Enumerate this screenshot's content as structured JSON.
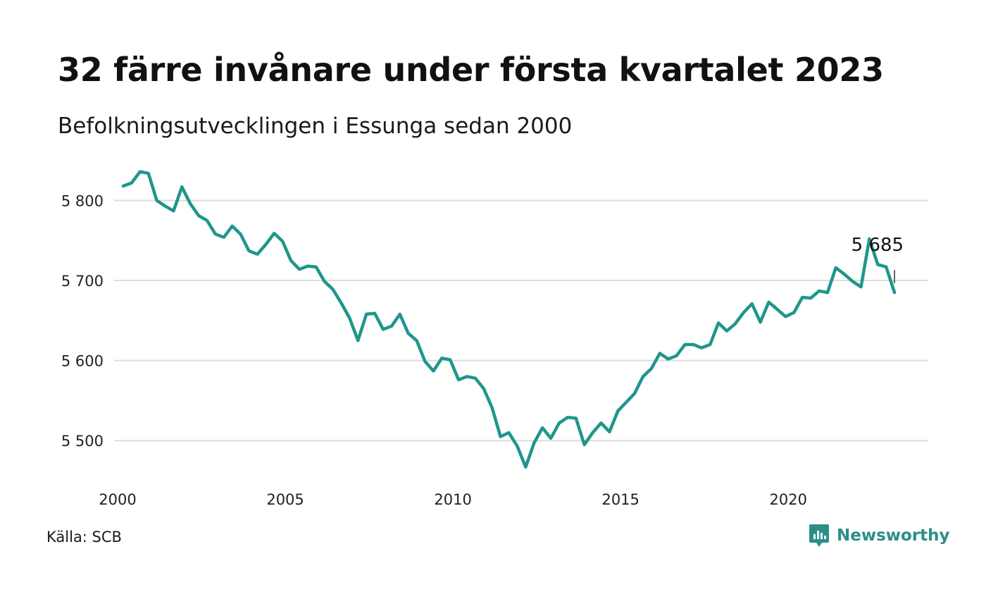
{
  "header": {
    "title": "32 färre invånare under första kvartalet 2023",
    "subtitle": "Befolkningsutvecklingen i Essunga sedan 2000"
  },
  "footer": {
    "source": "Källa: SCB",
    "brand": "Newsworthy",
    "brand_icon": "newsworthy-logo-icon"
  },
  "colors": {
    "line": "#1f968b",
    "grid": "#dddddd",
    "brand": "#2b8f87"
  },
  "chart_data": {
    "type": "line",
    "title": "32 färre invånare under första kvartalet 2023",
    "subtitle": "Befolkningsutvecklingen i Essunga sedan 2000",
    "xlabel": "",
    "ylabel": "",
    "x_ticks": [
      "2000",
      "2005",
      "2010",
      "2015",
      "2020"
    ],
    "y_ticks": [
      {
        "value": 5500,
        "label": "5 500"
      },
      {
        "value": 5600,
        "label": "5 600"
      },
      {
        "value": 5700,
        "label": "5 700"
      },
      {
        "value": 5800,
        "label": "5 800"
      }
    ],
    "xlim": [
      2000,
      2023.25
    ],
    "ylim": [
      5450,
      5855
    ],
    "grid": true,
    "legend": "none",
    "annotation": {
      "label": "5 685",
      "x": 2023.0,
      "y": 5685
    },
    "series": [
      {
        "x": [
          2000.0,
          2000.25,
          2000.5,
          2000.75,
          2001.0,
          2001.25,
          2001.5,
          2001.75,
          2002.0,
          2002.25,
          2002.5,
          2002.75,
          2003.0,
          2003.25,
          2003.5,
          2003.75,
          2004.0,
          2004.25,
          2004.5,
          2004.75,
          2005.0,
          2005.25,
          2005.5,
          2005.75,
          2006.0,
          2006.25,
          2006.5,
          2006.75,
          2007.0,
          2007.25,
          2007.5,
          2007.75,
          2008.0,
          2008.25,
          2008.5,
          2008.75,
          2009.0,
          2009.25,
          2009.5,
          2009.75,
          2010.0,
          2010.25,
          2010.5,
          2010.75,
          2011.0,
          2011.25,
          2011.5,
          2011.75,
          2012.0,
          2012.25,
          2012.5,
          2012.75,
          2013.0,
          2013.25,
          2013.5,
          2013.75,
          2014.0,
          2014.25,
          2014.5,
          2014.75,
          2015.0,
          2015.25,
          2015.5,
          2015.75,
          2016.0,
          2016.25,
          2016.5,
          2016.75,
          2017.0,
          2017.25,
          2017.5,
          2017.75,
          2018.0,
          2018.25,
          2018.5,
          2018.75,
          2019.0,
          2019.25,
          2019.5,
          2019.75,
          2020.0,
          2020.25,
          2020.5,
          2020.75,
          2021.0,
          2021.25,
          2021.5,
          2021.75,
          2022.0,
          2022.25,
          2022.5,
          2022.75,
          2023.0
        ],
        "values": [
          5818,
          5822,
          5836,
          5834,
          5800,
          5793,
          5787,
          5817,
          5796,
          5781,
          5775,
          5758,
          5754,
          5768,
          5758,
          5737,
          5733,
          5745,
          5759,
          5749,
          5725,
          5714,
          5718,
          5717,
          5699,
          5689,
          5672,
          5653,
          5625,
          5658,
          5659,
          5639,
          5643,
          5658,
          5634,
          5625,
          5599,
          5587,
          5603,
          5601,
          5576,
          5580,
          5578,
          5565,
          5541,
          5505,
          5510,
          5493,
          5467,
          5497,
          5516,
          5503,
          5522,
          5529,
          5528,
          5495,
          5510,
          5522,
          5511,
          5537,
          5548,
          5559,
          5580,
          5590,
          5609,
          5602,
          5606,
          5620,
          5620,
          5616,
          5620,
          5647,
          5637,
          5646,
          5660,
          5671,
          5648,
          5673,
          5664,
          5655,
          5660,
          5679,
          5678,
          5687,
          5685,
          5716,
          5708,
          5699,
          5692,
          5752,
          5720,
          5717,
          5685
        ]
      }
    ]
  }
}
